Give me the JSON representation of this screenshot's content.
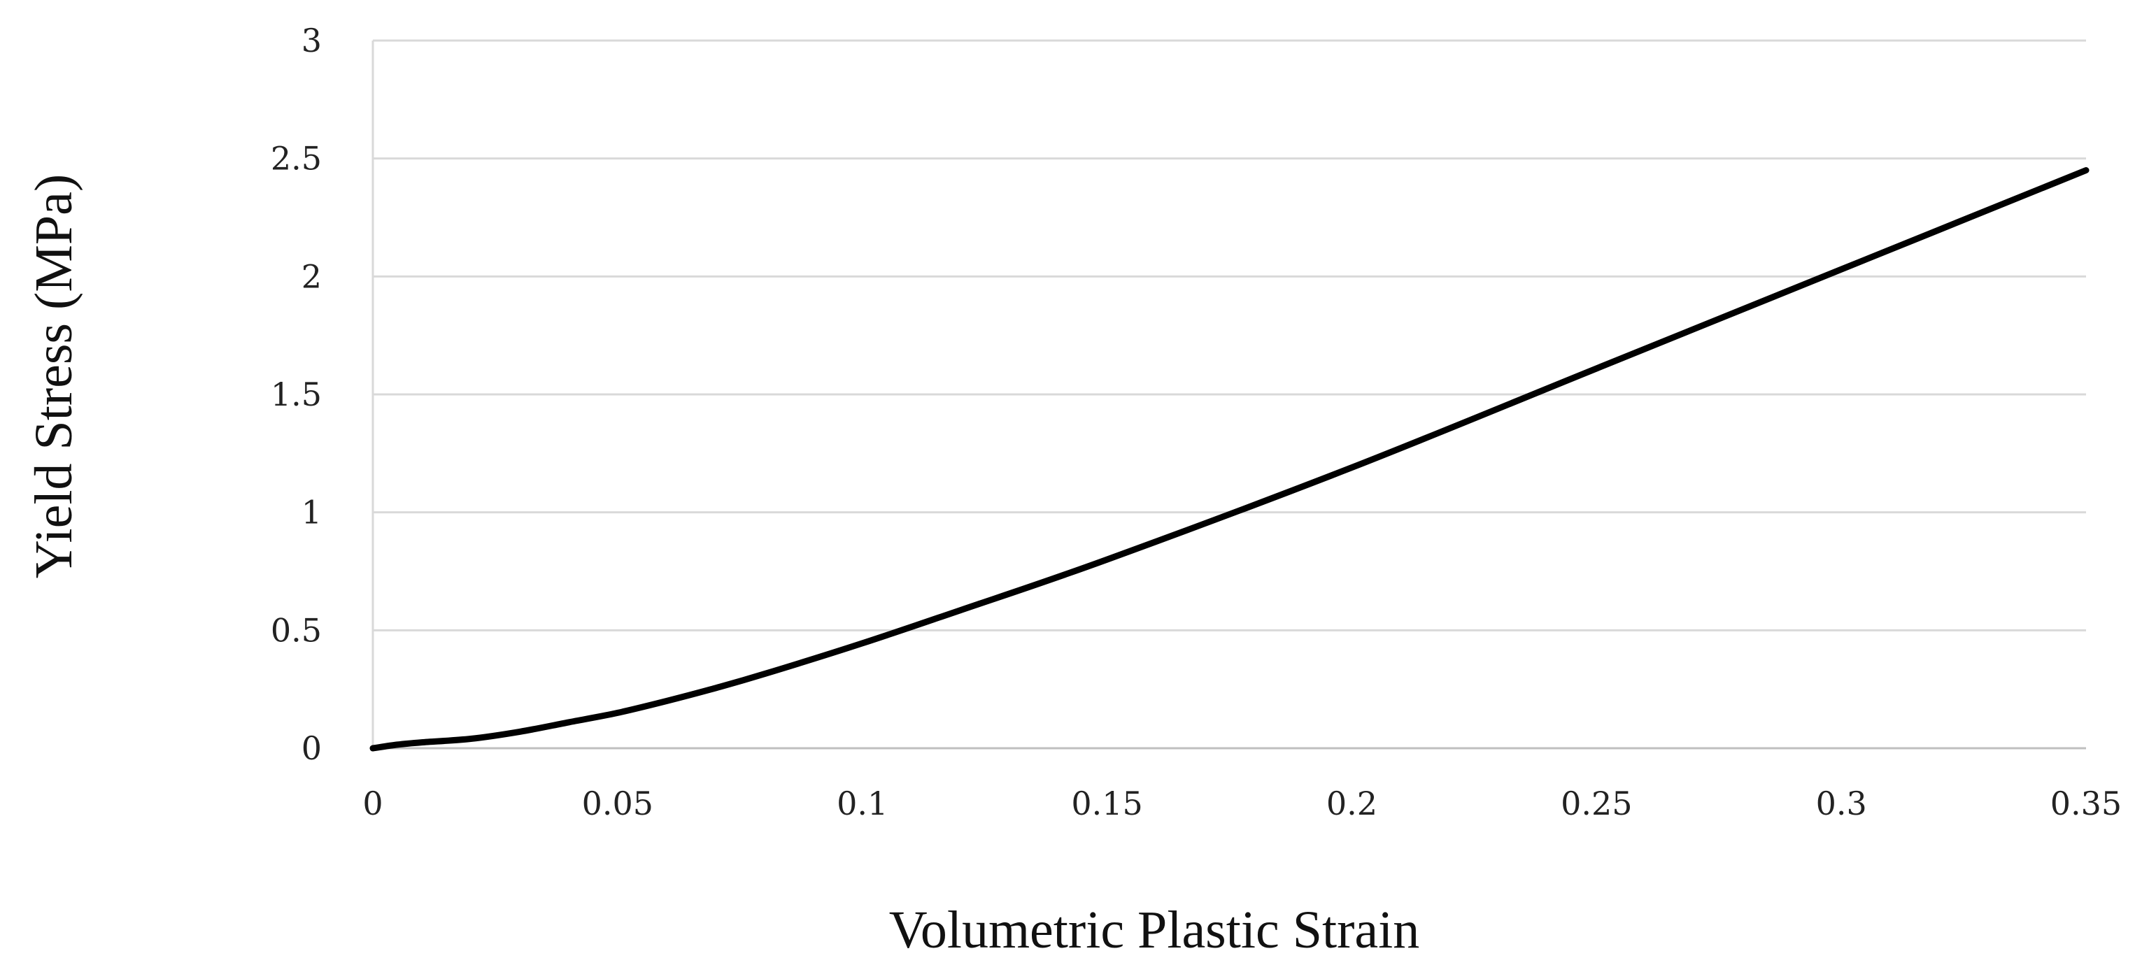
{
  "chart_data": {
    "type": "line",
    "title": "",
    "xlabel": "Volumetric Plastic Strain",
    "ylabel": "Yield Stress (MPa)",
    "xlim": [
      0,
      0.35
    ],
    "ylim": [
      0,
      3
    ],
    "x_ticks": [
      "0",
      "0.05",
      "0.1",
      "0.15",
      "0.2",
      "0.25",
      "0.3",
      "0.35"
    ],
    "y_ticks": [
      "0",
      "0.5",
      "1",
      "1.5",
      "2",
      "2.5",
      "3"
    ],
    "grid": "horizontal",
    "legend": "none",
    "series": [
      {
        "color": "#000000",
        "x": [
          0,
          0.005,
          0.01,
          0.02,
          0.03,
          0.04,
          0.05,
          0.06,
          0.07,
          0.08,
          0.1,
          0.12,
          0.15,
          0.2,
          0.25,
          0.3,
          0.35
        ],
        "y": [
          0,
          0.015,
          0.025,
          0.04,
          0.07,
          0.11,
          0.15,
          0.2,
          0.255,
          0.315,
          0.445,
          0.585,
          0.8,
          1.19,
          1.61,
          2.03,
          2.45
        ]
      }
    ]
  }
}
